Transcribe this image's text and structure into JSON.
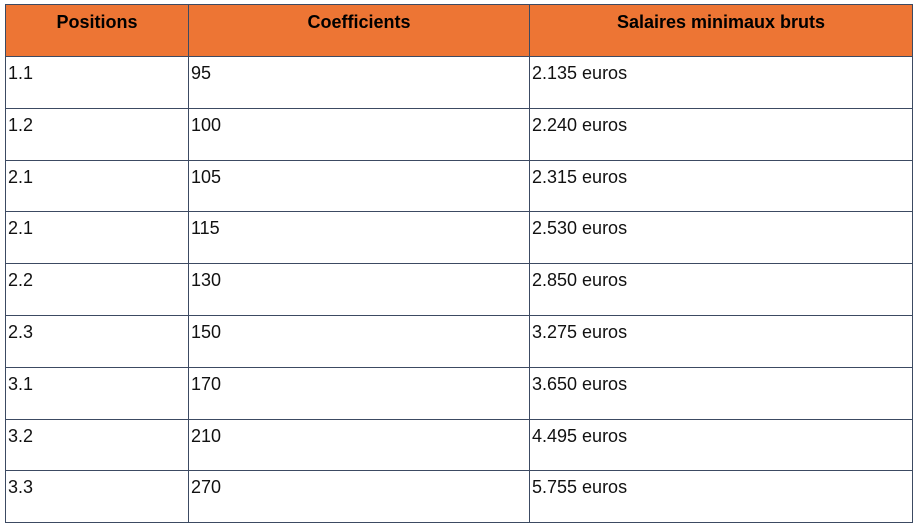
{
  "table": {
    "headers": [
      "Positions",
      "Coefficients",
      "Salaires minimaux bruts"
    ],
    "header_color": "#ed7534",
    "rows": [
      [
        "1.1",
        "95",
        "2.135 euros"
      ],
      [
        "1.2",
        "100",
        "2.240 euros"
      ],
      [
        "2.1",
        "105",
        "2.315 euros"
      ],
      [
        "2.1",
        "115",
        "2.530 euros"
      ],
      [
        "2.2",
        "130",
        "2.850 euros"
      ],
      [
        "2.3",
        "150",
        "3.275 euros"
      ],
      [
        "3.1",
        "170",
        "3.650 euros"
      ],
      [
        "3.2",
        "210",
        "4.495 euros"
      ],
      [
        "3.3",
        "270",
        "5.755 euros"
      ]
    ]
  }
}
